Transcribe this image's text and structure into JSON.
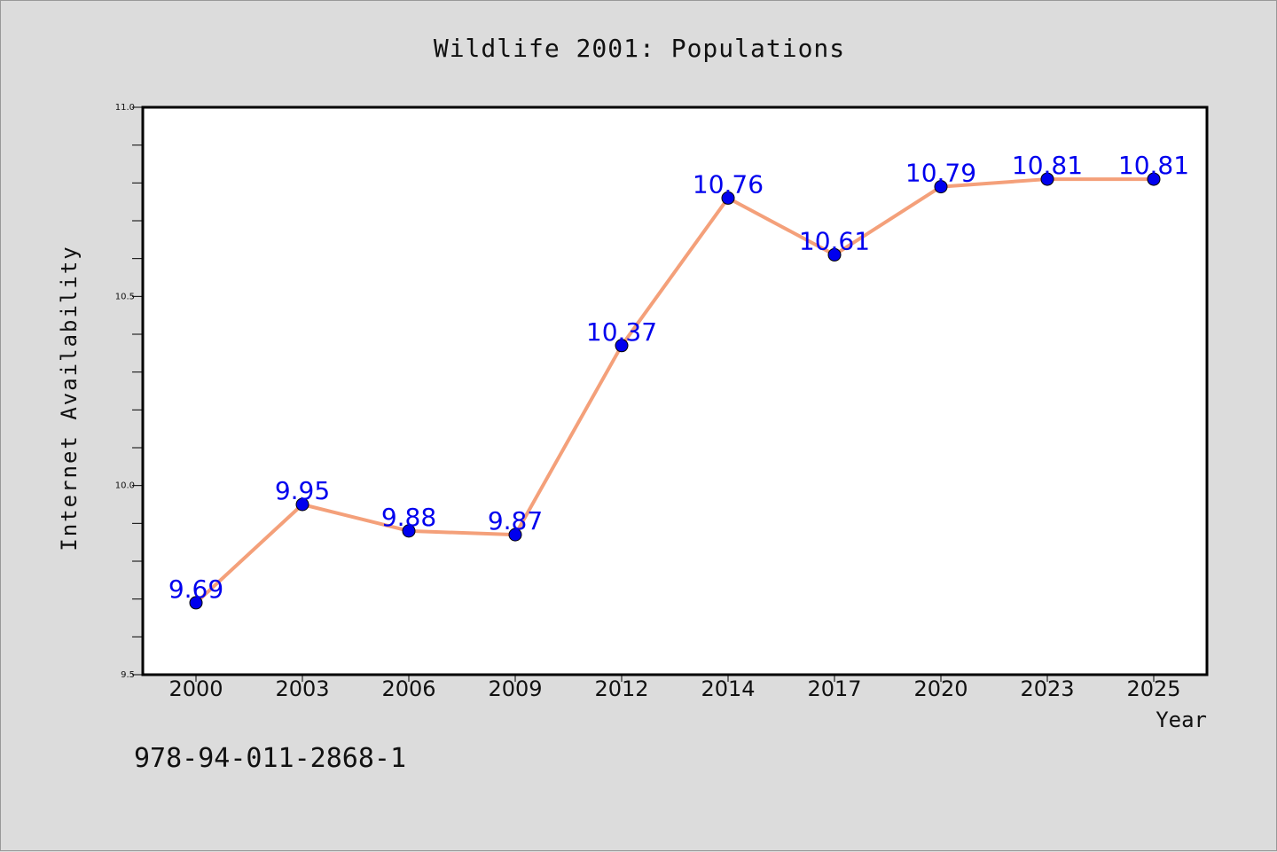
{
  "chart_data": {
    "type": "line",
    "title": "Wildlife 2001: Populations",
    "xlabel": "Year",
    "ylabel": "Internet Availability",
    "categories": [
      "2000",
      "2003",
      "2006",
      "2009",
      "2012",
      "2014",
      "2017",
      "2020",
      "2023",
      "2025"
    ],
    "series": [
      {
        "values": [
          9.69,
          9.95,
          9.88,
          9.87,
          10.37,
          10.76,
          10.61,
          10.79,
          10.81,
          10.81
        ],
        "data_labels": [
          "9.69",
          "9.95",
          "9.88",
          "9.87",
          "10.37",
          "10.76",
          "10.61",
          "10.79",
          "10.81",
          "10.81"
        ],
        "line_color": "#f4a07a",
        "marker_color": "#0000ee",
        "label_color": "#0000ee"
      }
    ],
    "ylim": [
      9.5,
      11.0
    ],
    "yticks": [
      "9.5",
      "10.0",
      "10.5",
      "11.0"
    ],
    "grid": false,
    "legend": "none"
  },
  "footer_text": "978-94-011-2868-1",
  "colors": {
    "background": "#dcdcdc",
    "plot_area": "#ffffff",
    "axes": "#000000"
  }
}
